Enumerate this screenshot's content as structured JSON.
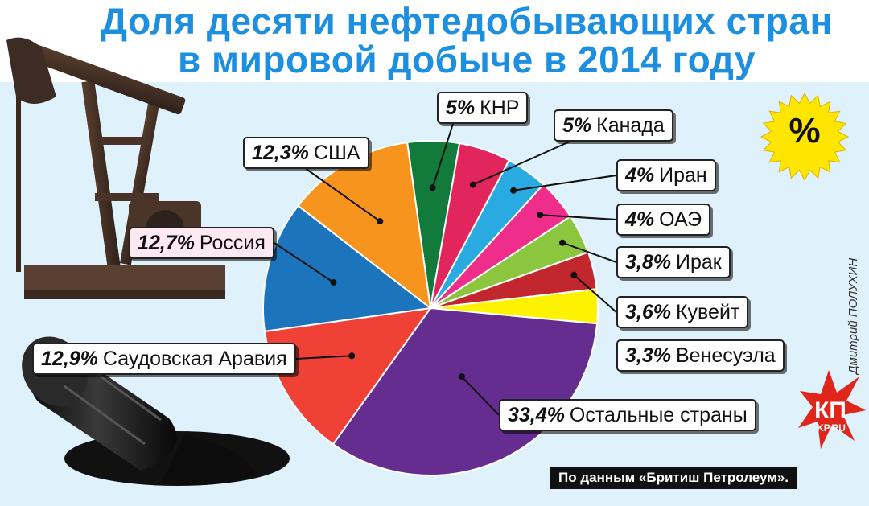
{
  "title": {
    "line1": "Доля десяти нефтедобывающих стран",
    "line2": "в мировой добыче в 2014 году"
  },
  "credit": "Дмитрий ПОЛУХИН",
  "source": "По данным «Бритиш Петролеум».",
  "badge": "%",
  "logo": {
    "line1": "КП",
    "line2": "KP.RU"
  },
  "colors": {
    "accent_title": "#1d8fe0",
    "background": "#dff1fb",
    "badge": "#ffe600"
  },
  "chart_data": {
    "type": "pie",
    "title": "Доля десяти нефтедобывающих стран в мировой добыче в 2014 году",
    "slices": [
      {
        "label": "КНР",
        "pct_label": "5%",
        "value": 5,
        "color": "#127a3a"
      },
      {
        "label": "Канада",
        "pct_label": "5%",
        "value": 5,
        "color": "#e2255d"
      },
      {
        "label": "Иран",
        "pct_label": "4%",
        "value": 4,
        "color": "#29abe2"
      },
      {
        "label": "ОАЭ",
        "pct_label": "4%",
        "value": 4,
        "color": "#ee2e8a"
      },
      {
        "label": "Ирак",
        "pct_label": "3,8%",
        "value": 3.8,
        "color": "#8cc63f"
      },
      {
        "label": "Кувейт",
        "pct_label": "3,6%",
        "value": 3.6,
        "color": "#c1272d"
      },
      {
        "label": "Венесуэла",
        "pct_label": "3,3%",
        "value": 3.3,
        "color": "#fff200"
      },
      {
        "label": "Остальные страны",
        "pct_label": "33,4%",
        "value": 33.4,
        "color": "#662d91"
      },
      {
        "label": "Саудовская Аравия",
        "pct_label": "12,9%",
        "value": 12.9,
        "color": "#ef4136"
      },
      {
        "label": "Россия",
        "pct_label": "12,7%",
        "value": 12.7,
        "color": "#1c75bc"
      },
      {
        "label": "США",
        "pct_label": "12,3%",
        "value": 12.3,
        "color": "#f7941d"
      }
    ]
  }
}
